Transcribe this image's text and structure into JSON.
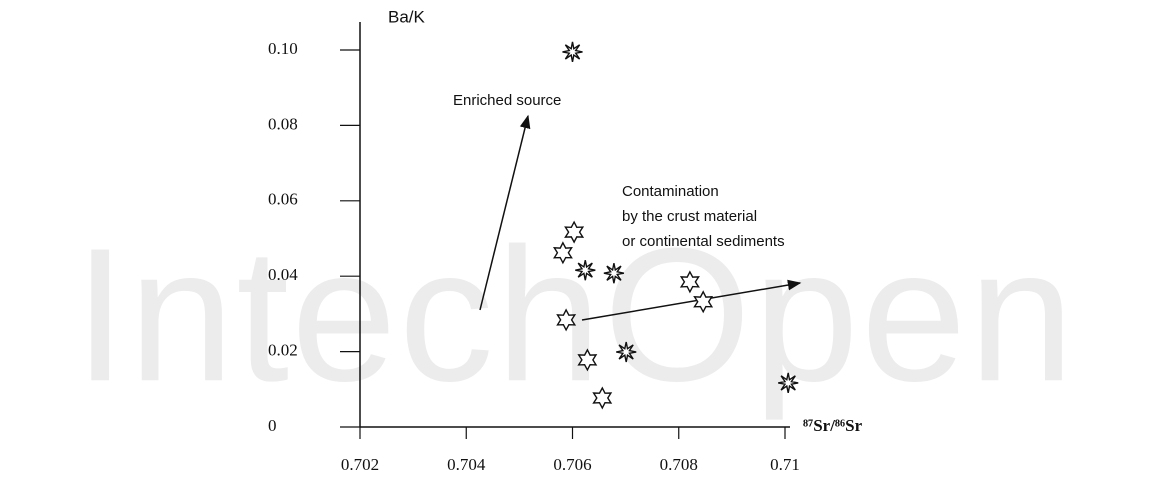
{
  "chart_data": {
    "type": "scatter",
    "watermark": "IntechOpen",
    "ylabel": "Ba/K",
    "xlabel": "⁸⁷Sr/⁸⁶Sr",
    "xlim": [
      0.702,
      0.71
    ],
    "ylim": [
      0,
      0.1
    ],
    "xticks": [
      0.702,
      0.704,
      0.706,
      0.708,
      0.71
    ],
    "yticks": [
      0,
      0.02,
      0.04,
      0.06,
      0.08,
      {
        "value": 0.1,
        "label": "0.10"
      }
    ],
    "color": "#111111",
    "series": [
      {
        "marker": "spiky-star",
        "x": [
          0.706,
          0.70624,
          0.70678,
          0.70701,
          0.71006
        ],
        "values": [
          0.0995,
          0.0416,
          0.0408,
          0.0199,
          0.0117
        ]
      },
      {
        "marker": "six-point-star",
        "x": [
          0.70603,
          0.70582,
          0.70588,
          0.70628,
          0.70656,
          0.70821,
          0.70846
        ],
        "values": [
          0.0517,
          0.0462,
          0.0284,
          0.0178,
          0.0077,
          0.0385,
          0.0332
        ]
      }
    ],
    "annotations": [
      {
        "lines": [
          "Enriched source"
        ]
      },
      {
        "lines": [
          "Contamination",
          "by  the  crust material",
          "or continental sediments"
        ]
      }
    ]
  }
}
